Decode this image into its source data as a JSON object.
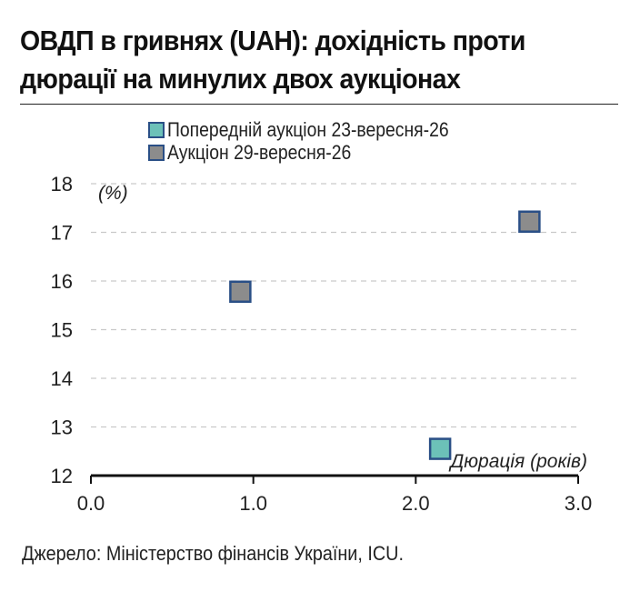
{
  "title": "ОВДП в гривнях (UAH): дохідність проти дюрації на минулих двох аукціонах",
  "source": "Джерело: Міністерство фінансів України, ICU.",
  "chart_data": {
    "type": "scatter",
    "ylabel": "(%)",
    "xlabel": "Дюрація (років)",
    "xlim": [
      0.0,
      3.0
    ],
    "ylim": [
      12,
      18
    ],
    "x_ticks": [
      "0.0",
      "1.0",
      "2.0",
      "3.0"
    ],
    "y_ticks": [
      "12",
      "13",
      "14",
      "15",
      "16",
      "17",
      "18"
    ],
    "grid": "horizontal dashed",
    "legend_position": "top",
    "series": [
      {
        "name": "Попередній аукціон 23-вересня-26",
        "color": "#6cc1b8",
        "points": [
          {
            "x": 2.15,
            "y": 12.55
          }
        ]
      },
      {
        "name": "Аукціон 29-вересня-26",
        "color": "#8c8c8c",
        "points": [
          {
            "x": 0.92,
            "y": 15.78
          },
          {
            "x": 2.7,
            "y": 17.22
          }
        ]
      }
    ],
    "marker_edge_color": "#2a4f86",
    "axis_color": "#111111",
    "grid_color": "#c9c9c9"
  }
}
